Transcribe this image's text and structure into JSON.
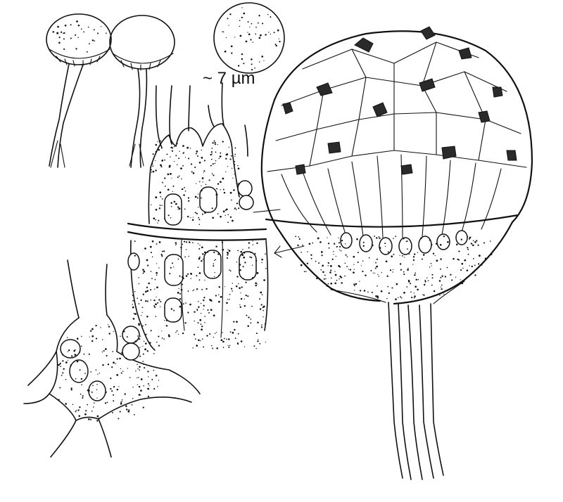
{
  "figure": {
    "scale_label": "~ 7 µm",
    "colors": {
      "ink": "#111111",
      "background": "#ffffff"
    },
    "panels": [
      {
        "name": "spore-pair-with-stalks"
      },
      {
        "name": "single-spore"
      },
      {
        "name": "cellular-slug-tissue"
      },
      {
        "name": "amoeba-cell"
      },
      {
        "name": "sporangium-fruiting-body"
      }
    ]
  }
}
